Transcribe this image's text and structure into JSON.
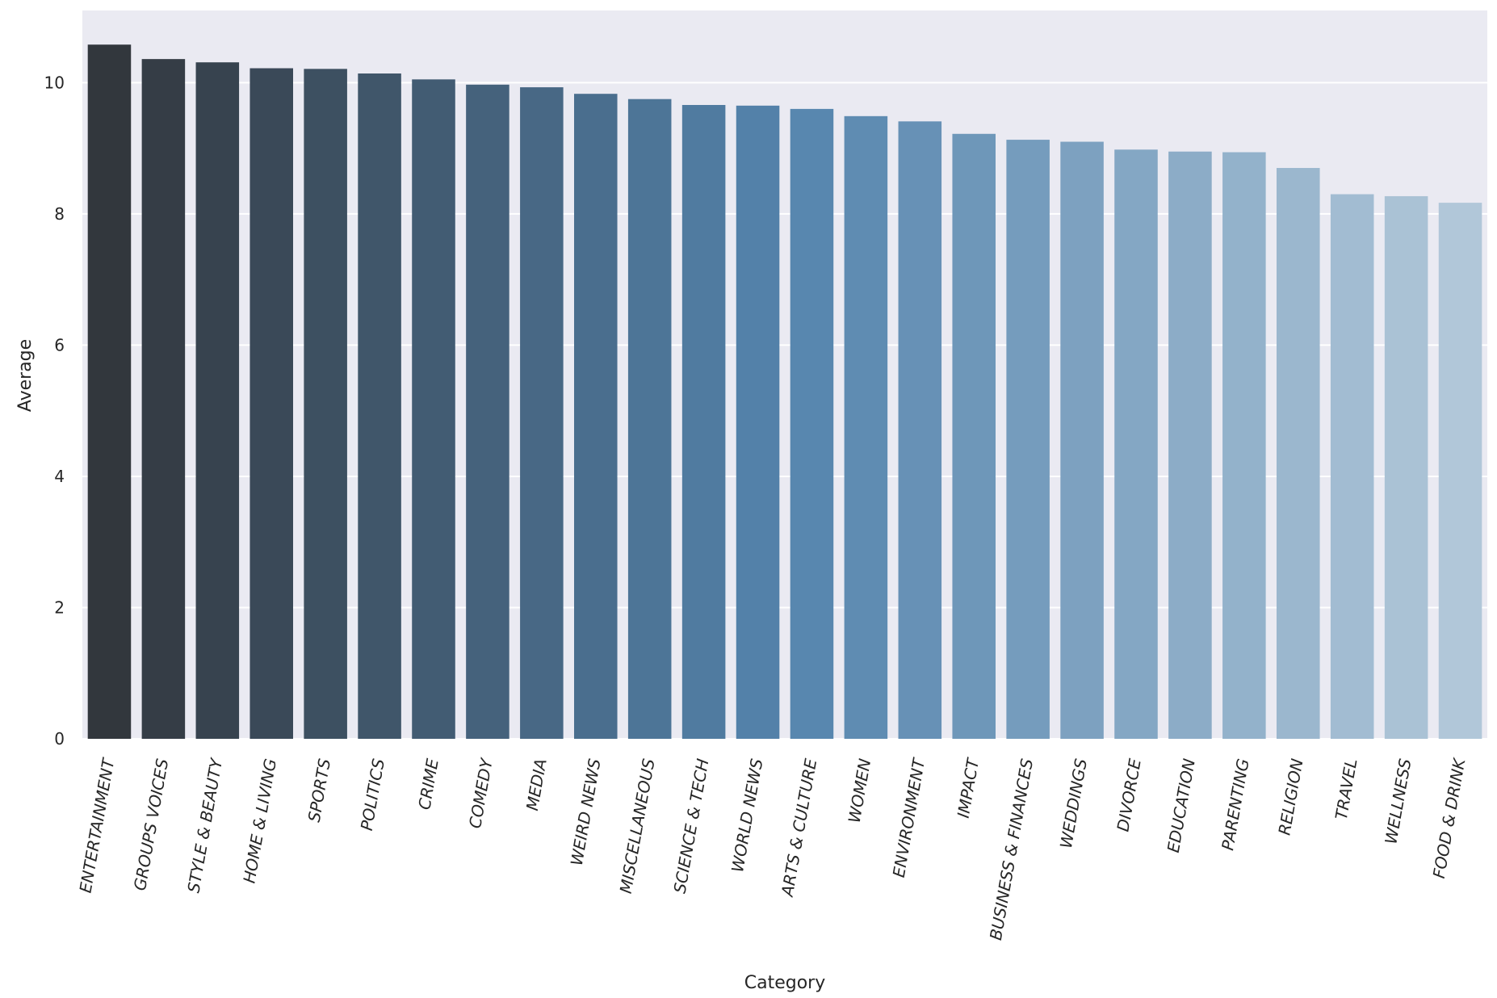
{
  "chart_data": {
    "type": "bar",
    "title": "",
    "xlabel": "Category",
    "ylabel": "Average",
    "ylim": [
      0,
      11.1
    ],
    "yticks": [
      0,
      2,
      4,
      6,
      8,
      10
    ],
    "ytick_labels": [
      "0",
      "2",
      "4",
      "6",
      "8",
      "10"
    ],
    "grid": true,
    "legend": "none",
    "palette": {
      "start": "#32373d",
      "mid": "#5484ad",
      "end": "#b1c7d9",
      "background": "#eaeaf2",
      "grid": "#ffffff"
    },
    "categories": [
      "ENTERTAINMENT",
      "GROUPS VOICES",
      "STYLE & BEAUTY",
      "HOME & LIVING",
      "SPORTS",
      "POLITICS",
      "CRIME",
      "COMEDY",
      "MEDIA",
      "WEIRD NEWS",
      "MISCELLANEOUS",
      "SCIENCE & TECH",
      "WORLD NEWS",
      "ARTS & CULTURE",
      "WOMEN",
      "ENVIRONMENT",
      "IMPACT",
      "BUSINESS & FINANCES",
      "WEDDINGS",
      "DIVORCE",
      "EDUCATION",
      "PARENTING",
      "RELIGION",
      "TRAVEL",
      "WELLNESS",
      "FOOD & DRINK"
    ],
    "values": [
      10.58,
      10.36,
      10.31,
      10.22,
      10.21,
      10.14,
      10.05,
      9.97,
      9.93,
      9.83,
      9.75,
      9.66,
      9.65,
      9.6,
      9.49,
      9.41,
      9.22,
      9.13,
      9.1,
      8.98,
      8.95,
      8.94,
      8.7,
      8.3,
      8.27,
      8.17
    ]
  }
}
